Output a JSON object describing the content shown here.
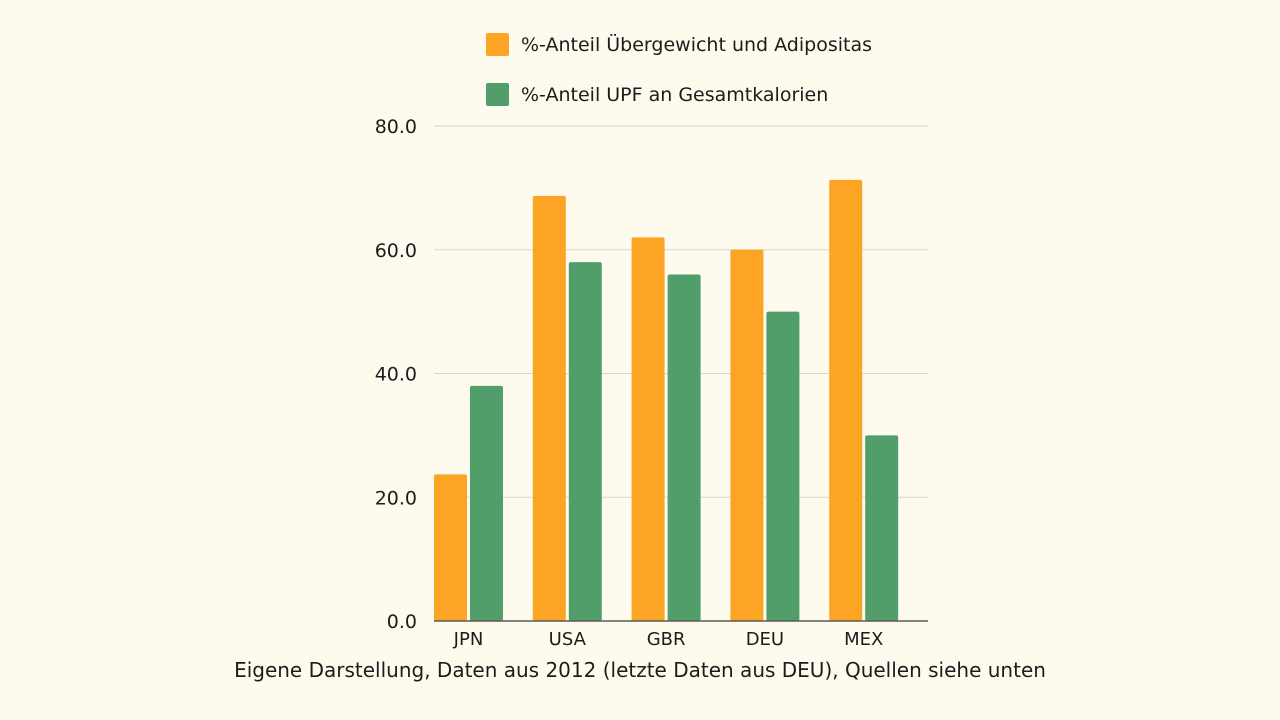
{
  "colors": {
    "background": "#fefbee",
    "series_1": "#fca524",
    "series_2": "#519e6b",
    "grid": "#d6d6cf",
    "text": "#1c1c1c"
  },
  "chart_data": {
    "type": "bar",
    "categories": [
      "JPN",
      "USA",
      "GBR",
      "DEU",
      "MEX"
    ],
    "series": [
      {
        "name": "%-Anteil Übergewicht und Adipositas",
        "values": [
          23.7,
          68.7,
          62.0,
          60.0,
          71.3
        ]
      },
      {
        "name": "%-Anteil UPF an Gesamtkalorien",
        "values": [
          38.0,
          58.0,
          56.0,
          50.0,
          30.0
        ]
      }
    ],
    "ylim": [
      0,
      80
    ],
    "yticks": [
      "0.0",
      "20.0",
      "40.0",
      "60.0",
      "80.0"
    ],
    "ytick_values": [
      0,
      20,
      40,
      60,
      80
    ],
    "grid": true,
    "legend_position": "top-center",
    "title": "",
    "xlabel": "",
    "ylabel": ""
  },
  "caption": "Eigene Darstellung, Daten aus 2012 (letzte Daten aus DEU), Quellen siehe unten"
}
